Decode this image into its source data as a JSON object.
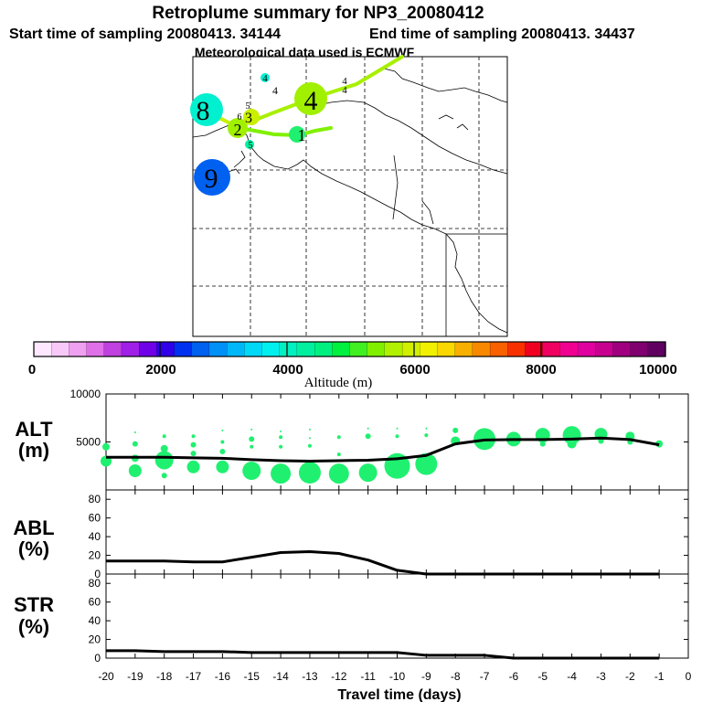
{
  "title": "Retroplume summary for NP3_20080412",
  "start_label": "Start time of sampling 20080413. 34144",
  "end_label": "End time of sampling 20080413. 34437",
  "met_label": "Meteorological data used is ECMWF",
  "colorbar": {
    "label": "Altitude (m)",
    "ticks": [
      "0",
      "2000",
      "4000",
      "6000",
      "8000",
      "10000"
    ],
    "colors": [
      "#ffe8ff",
      "#f8c8f8",
      "#f0a0f0",
      "#e070e8",
      "#c040e0",
      "#a020e8",
      "#7000e8",
      "#3000e8",
      "#0030f0",
      "#0060f0",
      "#0090f8",
      "#00b8f8",
      "#00d8f8",
      "#00f0f0",
      "#00f0c0",
      "#00f0a0",
      "#00f080",
      "#00f040",
      "#40f020",
      "#80f000",
      "#b0f000",
      "#d0f000",
      "#f0f000",
      "#f8d800",
      "#f8b000",
      "#f88800",
      "#f86000",
      "#f83000",
      "#f00020",
      "#f00060",
      "#f00090",
      "#e000a0",
      "#c80090",
      "#a00080",
      "#800070",
      "#600060"
    ]
  },
  "map": {
    "clusters": [
      {
        "label": "8",
        "color": "#00f0d0",
        "size": "large"
      },
      {
        "label": "9",
        "color": "#0060f0",
        "size": "large"
      },
      {
        "label": "4",
        "color": "#90f000",
        "size": "large"
      },
      {
        "label": "1",
        "color": "#00f080",
        "size": "medium"
      },
      {
        "label": "2",
        "color": "#a0f000",
        "size": "medium"
      },
      {
        "label": "3",
        "color": "#c0f000",
        "size": "medium"
      },
      {
        "label": "5",
        "color": "#00f0a0",
        "size": "small"
      },
      {
        "label": "4",
        "color": "#00f0d0",
        "size": "small"
      }
    ],
    "extra_labels": [
      "4",
      "4",
      "4",
      "5",
      "6"
    ]
  },
  "chart_data": [
    {
      "type": "line",
      "panel_label": [
        "ALT",
        "(m)"
      ],
      "x": [
        -20,
        -19,
        -18,
        -17,
        -16,
        -15,
        -14,
        -13,
        -12,
        -11,
        -10,
        -9,
        -8,
        -7,
        -6,
        -5,
        -4,
        -3,
        -2,
        -1
      ],
      "values": [
        3400,
        3400,
        3400,
        3350,
        3300,
        3150,
        3050,
        3000,
        3050,
        3100,
        3250,
        3600,
        4800,
        5200,
        5250,
        5250,
        5300,
        5400,
        5250,
        4700
      ],
      "ylim": [
        0,
        10000
      ],
      "yticks": [
        "5000",
        "10000"
      ],
      "bubbles": [
        {
          "x": -20,
          "y": 3000,
          "r": 6
        },
        {
          "x": -20,
          "y": 4500,
          "r": 4
        },
        {
          "x": -19,
          "y": 2000,
          "r": 7
        },
        {
          "x": -19,
          "y": 3300,
          "r": 4
        },
        {
          "x": -19,
          "y": 4800,
          "r": 3
        },
        {
          "x": -19,
          "y": 6000,
          "r": 1
        },
        {
          "x": -18,
          "y": 1500,
          "r": 3
        },
        {
          "x": -18,
          "y": 3100,
          "r": 10
        },
        {
          "x": -18,
          "y": 4300,
          "r": 4
        },
        {
          "x": -18,
          "y": 5600,
          "r": 2
        },
        {
          "x": -17,
          "y": 2400,
          "r": 7
        },
        {
          "x": -17,
          "y": 3800,
          "r": 3
        },
        {
          "x": -17,
          "y": 4700,
          "r": 3
        },
        {
          "x": -17,
          "y": 5600,
          "r": 2
        },
        {
          "x": -16,
          "y": 2400,
          "r": 7
        },
        {
          "x": -16,
          "y": 4000,
          "r": 3
        },
        {
          "x": -16,
          "y": 5000,
          "r": 2
        },
        {
          "x": -16,
          "y": 6200,
          "r": 1
        },
        {
          "x": -15,
          "y": 2000,
          "r": 10
        },
        {
          "x": -15,
          "y": 4500,
          "r": 2
        },
        {
          "x": -15,
          "y": 5300,
          "r": 3
        },
        {
          "x": -15,
          "y": 6300,
          "r": 1
        },
        {
          "x": -14,
          "y": 1700,
          "r": 11
        },
        {
          "x": -14,
          "y": 4500,
          "r": 2
        },
        {
          "x": -14,
          "y": 5500,
          "r": 2
        },
        {
          "x": -14,
          "y": 6100,
          "r": 1
        },
        {
          "x": -13,
          "y": 1800,
          "r": 12
        },
        {
          "x": -13,
          "y": 4600,
          "r": 2
        },
        {
          "x": -13,
          "y": 5400,
          "r": 1
        },
        {
          "x": -13,
          "y": 6300,
          "r": 1
        },
        {
          "x": -12,
          "y": 1700,
          "r": 11
        },
        {
          "x": -12,
          "y": 3700,
          "r": 2
        },
        {
          "x": -12,
          "y": 5500,
          "r": 2
        },
        {
          "x": -11,
          "y": 1800,
          "r": 10
        },
        {
          "x": -11,
          "y": 5600,
          "r": 3
        },
        {
          "x": -11,
          "y": 6400,
          "r": 1
        },
        {
          "x": -10,
          "y": 2500,
          "r": 14
        },
        {
          "x": -10,
          "y": 5600,
          "r": 2
        },
        {
          "x": -10,
          "y": 6400,
          "r": 1
        },
        {
          "x": -9,
          "y": 2700,
          "r": 12
        },
        {
          "x": -9,
          "y": 5700,
          "r": 2
        },
        {
          "x": -9,
          "y": 6400,
          "r": 1
        },
        {
          "x": -8,
          "y": 5100,
          "r": 5
        },
        {
          "x": -8,
          "y": 6200,
          "r": 3
        },
        {
          "x": -7,
          "y": 5300,
          "r": 12
        },
        {
          "x": -6,
          "y": 5300,
          "r": 8
        },
        {
          "x": -5,
          "y": 5700,
          "r": 8
        },
        {
          "x": -5,
          "y": 4800,
          "r": 3
        },
        {
          "x": -4,
          "y": 5700,
          "r": 10
        },
        {
          "x": -4,
          "y": 4800,
          "r": 5
        },
        {
          "x": -3,
          "y": 5800,
          "r": 7
        },
        {
          "x": -3,
          "y": 5100,
          "r": 3
        },
        {
          "x": -2,
          "y": 5600,
          "r": 5
        },
        {
          "x": -2,
          "y": 5000,
          "r": 3
        },
        {
          "x": -1,
          "y": 4800,
          "r": 4
        }
      ]
    },
    {
      "type": "line",
      "panel_label": [
        "ABL",
        "(%)"
      ],
      "x": [
        -20,
        -19,
        -18,
        -17,
        -16,
        -15,
        -14,
        -13,
        -12,
        -11,
        -10,
        -9,
        -8,
        -7,
        -6,
        -5,
        -4,
        -3,
        -2,
        -1
      ],
      "values": [
        14,
        14,
        14,
        13,
        13,
        18,
        23,
        24,
        22,
        15,
        4,
        0,
        0,
        0,
        0,
        0,
        0,
        0,
        0,
        0
      ],
      "ylim": [
        0,
        90
      ],
      "yticks": [
        "0",
        "20",
        "40",
        "60",
        "80"
      ]
    },
    {
      "type": "line",
      "panel_label": [
        "STR",
        "(%)"
      ],
      "x": [
        -20,
        -19,
        -18,
        -17,
        -16,
        -15,
        -14,
        -13,
        -12,
        -11,
        -10,
        -9,
        -8,
        -7,
        -6,
        -5,
        -4,
        -3,
        -2,
        -1
      ],
      "values": [
        8,
        8,
        7,
        7,
        7,
        6,
        6,
        6,
        6,
        6,
        6,
        3,
        3,
        3,
        0,
        0,
        0,
        0,
        0,
        0
      ],
      "ylim": [
        0,
        90
      ],
      "yticks": [
        "0",
        "20",
        "40",
        "60",
        "80"
      ],
      "xlabel": "Travel time (days)",
      "xticks": [
        "-20",
        "-19",
        "-18",
        "-17",
        "-16",
        "-15",
        "-14",
        "-13",
        "-12",
        "-11",
        "-10",
        "-9",
        "-8",
        "-7",
        "-6",
        "-5",
        "-4",
        "-3",
        "-2",
        "-1",
        "0"
      ]
    }
  ]
}
